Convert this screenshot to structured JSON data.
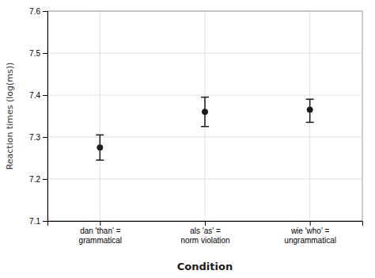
{
  "chart_data": {
    "type": "errorbar",
    "categories": [
      "dan 'than' =\ngrammatical",
      "als 'as' =\nnorm violation",
      "wie 'who' =\nungrammatical"
    ],
    "values": [
      7.275,
      7.36,
      7.365
    ],
    "ci_lower": [
      7.245,
      7.325,
      7.335
    ],
    "ci_upper": [
      7.305,
      7.395,
      7.39
    ],
    "xlabel": "Condition",
    "ylabel": "Reaction times (log(ms))",
    "ylim": [
      7.1,
      7.6
    ],
    "yticks": [
      7.1,
      7.2,
      7.3,
      7.4,
      7.5,
      7.6
    ],
    "grid": true,
    "color": "#1a1a1a",
    "marker": "circle"
  }
}
